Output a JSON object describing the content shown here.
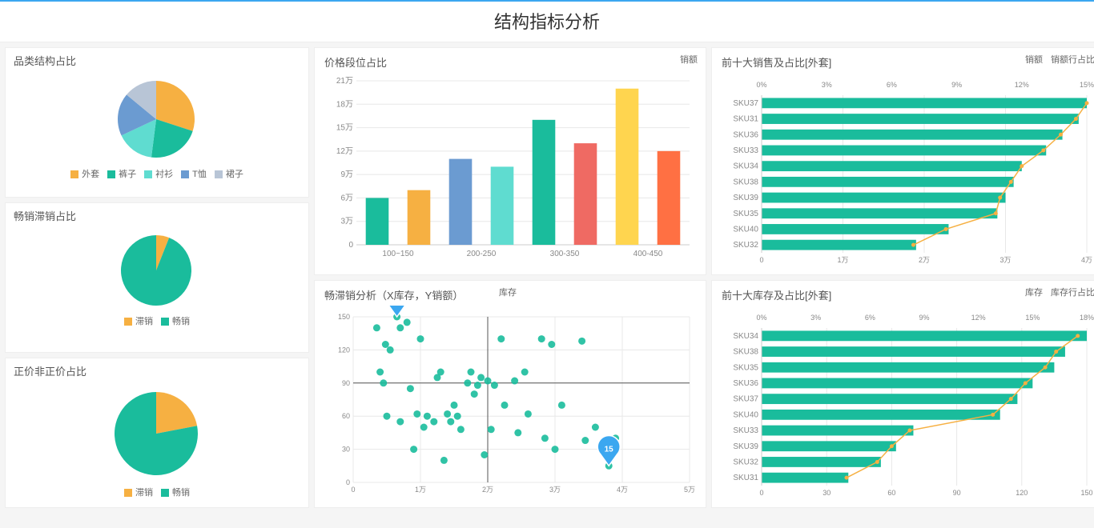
{
  "colors": {
    "teal": "#1abc9c",
    "orange": "#f6b042",
    "blue": "#6b9bd1",
    "light_teal": "#5fdcd0",
    "gray": "#b8c5d6",
    "red": "#ef6a63",
    "yellow": "#ffd54f",
    "deep_orange": "#ff7043",
    "grid": "#e8e8e8",
    "axis": "#cccccc",
    "text": "#888888"
  },
  "page_title": "结构指标分析",
  "pie_category": {
    "title": "品类结构占比",
    "slices": [
      {
        "label": "外套",
        "value": 30,
        "color": "#f6b042"
      },
      {
        "label": "裤子",
        "value": 22,
        "color": "#1abc9c"
      },
      {
        "label": "衬衫",
        "value": 16,
        "color": "#5fdcd0"
      },
      {
        "label": "T恤",
        "value": 18,
        "color": "#6b9bd1"
      },
      {
        "label": "裙子",
        "value": 14,
        "color": "#b8c5d6"
      }
    ]
  },
  "pie_slow": {
    "title": "畅销滞销占比",
    "slices": [
      {
        "label": "滞销",
        "value": 6,
        "color": "#f6b042"
      },
      {
        "label": "畅销",
        "value": 94,
        "color": "#1abc9c"
      }
    ]
  },
  "pie_price": {
    "title": "正价非正价占比",
    "slices": [
      {
        "label": "滞销",
        "value": 22,
        "color": "#f6b042"
      },
      {
        "label": "畅销",
        "value": 78,
        "color": "#1abc9c"
      }
    ]
  },
  "price_bar": {
    "title": "价格段位占比",
    "legend": "销额",
    "y_unit": "万",
    "y_ticks": [
      0,
      3,
      6,
      9,
      12,
      15,
      18,
      21
    ],
    "x_groups": [
      "100~150",
      "200-250",
      "300-350",
      "400-450"
    ],
    "bars": [
      {
        "value": 6,
        "color": "#1abc9c"
      },
      {
        "value": 7,
        "color": "#f6b042"
      },
      {
        "value": 11,
        "color": "#6b9bd1"
      },
      {
        "value": 10,
        "color": "#5fdcd0"
      },
      {
        "value": 16,
        "color": "#1abc9c"
      },
      {
        "value": 13,
        "color": "#ef6a63"
      },
      {
        "value": 20,
        "color": "#ffd54f"
      },
      {
        "value": 12,
        "color": "#ff7043"
      }
    ]
  },
  "top_sales": {
    "title": "前十大销售及占比[外套]",
    "legend_bar": "销额",
    "legend_line": "销额行占比",
    "x_min": 0,
    "x_max": 40000,
    "x_ticks": [
      0,
      10000,
      20000,
      30000,
      40000
    ],
    "x_tick_labels": [
      "0",
      "1万",
      "2万",
      "3万",
      "4万"
    ],
    "pct_ticks": [
      0,
      3,
      6,
      9,
      12,
      15
    ],
    "bar_color": "#1abc9c",
    "line_color": "#f6b042",
    "rows": [
      {
        "sku": "SKU37",
        "value": 40000,
        "pct": 15.0
      },
      {
        "sku": "SKU31",
        "value": 39000,
        "pct": 14.5
      },
      {
        "sku": "SKU36",
        "value": 37000,
        "pct": 13.8
      },
      {
        "sku": "SKU33",
        "value": 35000,
        "pct": 13.0
      },
      {
        "sku": "SKU34",
        "value": 32000,
        "pct": 12.0
      },
      {
        "sku": "SKU38",
        "value": 31000,
        "pct": 11.5
      },
      {
        "sku": "SKU39",
        "value": 30000,
        "pct": 11.0
      },
      {
        "sku": "SKU35",
        "value": 29000,
        "pct": 10.8
      },
      {
        "sku": "SKU40",
        "value": 23000,
        "pct": 8.5
      },
      {
        "sku": "SKU32",
        "value": 19000,
        "pct": 7.0
      }
    ]
  },
  "scatter": {
    "title": "畅滞销分析（X库存，Y销额）",
    "legend": "库存",
    "x_min": 0,
    "x_max": 50000,
    "y_min": 0,
    "y_max": 150,
    "x_ticks": [
      0,
      10000,
      20000,
      30000,
      40000,
      50000
    ],
    "x_tick_labels": [
      "0",
      "1万",
      "2万",
      "3万",
      "4万",
      "5万"
    ],
    "y_ticks": [
      0,
      30,
      60,
      90,
      120,
      150
    ],
    "cross_x": 20000,
    "cross_y": 90,
    "dot_color": "#1abc9c",
    "tip1": {
      "x": 6500,
      "y": 150,
      "label": "150",
      "color": "#3ba7f0"
    },
    "tip2": {
      "x": 38000,
      "y": 15,
      "label": "15",
      "color": "#3ba7f0"
    },
    "points": [
      [
        3500,
        140
      ],
      [
        4000,
        100
      ],
      [
        4500,
        90
      ],
      [
        4800,
        125
      ],
      [
        5000,
        60
      ],
      [
        5500,
        120
      ],
      [
        6500,
        150
      ],
      [
        7000,
        140
      ],
      [
        7000,
        55
      ],
      [
        8000,
        145
      ],
      [
        8500,
        85
      ],
      [
        9000,
        30
      ],
      [
        9500,
        62
      ],
      [
        10000,
        130
      ],
      [
        10500,
        50
      ],
      [
        11000,
        60
      ],
      [
        12000,
        55
      ],
      [
        12500,
        95
      ],
      [
        13000,
        100
      ],
      [
        13500,
        20
      ],
      [
        14000,
        62
      ],
      [
        14500,
        55
      ],
      [
        15000,
        70
      ],
      [
        15500,
        60
      ],
      [
        16000,
        48
      ],
      [
        17000,
        90
      ],
      [
        17500,
        100
      ],
      [
        18000,
        80
      ],
      [
        18500,
        88
      ],
      [
        19000,
        95
      ],
      [
        19500,
        25
      ],
      [
        20000,
        92
      ],
      [
        20500,
        48
      ],
      [
        21000,
        88
      ],
      [
        22000,
        130
      ],
      [
        22500,
        70
      ],
      [
        24000,
        92
      ],
      [
        24500,
        45
      ],
      [
        25500,
        100
      ],
      [
        26000,
        62
      ],
      [
        28000,
        130
      ],
      [
        28500,
        40
      ],
      [
        29500,
        125
      ],
      [
        30000,
        30
      ],
      [
        31000,
        70
      ],
      [
        34000,
        128
      ],
      [
        34500,
        38
      ],
      [
        36000,
        50
      ],
      [
        38000,
        15
      ],
      [
        39000,
        40
      ]
    ]
  },
  "top_stock": {
    "title": "前十大库存及占比[外套]",
    "legend_bar": "库存",
    "legend_line": "库存行占比",
    "x_min": 0,
    "x_max": 150,
    "x_ticks": [
      0,
      30,
      60,
      90,
      120,
      150
    ],
    "pct_ticks": [
      0,
      3,
      6,
      9,
      12,
      15,
      18
    ],
    "bar_color": "#1abc9c",
    "line_color": "#f6b042",
    "rows": [
      {
        "sku": "SKU34",
        "value": 150,
        "pct": 17.5
      },
      {
        "sku": "SKU38",
        "value": 140,
        "pct": 16.3
      },
      {
        "sku": "SKU35",
        "value": 135,
        "pct": 15.7
      },
      {
        "sku": "SKU36",
        "value": 125,
        "pct": 14.6
      },
      {
        "sku": "SKU37",
        "value": 118,
        "pct": 13.8
      },
      {
        "sku": "SKU40",
        "value": 110,
        "pct": 12.8
      },
      {
        "sku": "SKU33",
        "value": 70,
        "pct": 8.2
      },
      {
        "sku": "SKU39",
        "value": 62,
        "pct": 7.2
      },
      {
        "sku": "SKU32",
        "value": 55,
        "pct": 6.4
      },
      {
        "sku": "SKU31",
        "value": 40,
        "pct": 4.7
      }
    ]
  }
}
